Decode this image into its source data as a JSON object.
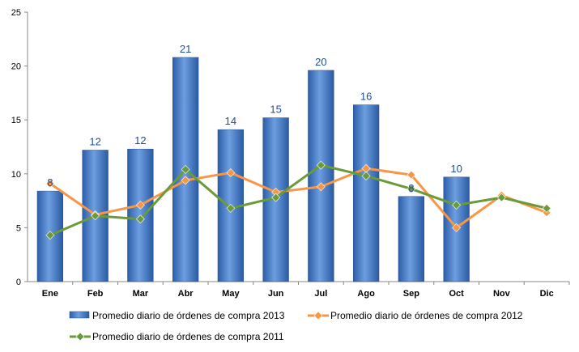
{
  "chart_data": {
    "type": "bar",
    "categories": [
      "Ene",
      "Feb",
      "Mar",
      "Abr",
      "May",
      "Jun",
      "Jul",
      "Ago",
      "Sep",
      "Oct",
      "Nov",
      "Dic"
    ],
    "ylim": [
      0,
      25
    ],
    "yticks": [
      0,
      5,
      10,
      15,
      20,
      25
    ],
    "grid": false,
    "legend_position": "bottom",
    "series": [
      {
        "name": "Promedio diario de órdenes de compra 2013",
        "kind": "bar",
        "color": "#4a7cc7",
        "values": [
          8.4,
          12.2,
          12.3,
          20.8,
          14.1,
          15.2,
          19.6,
          16.4,
          7.9,
          9.7,
          null,
          null
        ],
        "data_labels": [
          "8",
          "12",
          "12",
          "21",
          "14",
          "15",
          "20",
          "16",
          "8",
          "10",
          "",
          ""
        ]
      },
      {
        "name": "Promedio diario de órdenes de compra 2012",
        "kind": "line",
        "color": "#f79646",
        "values": [
          9.1,
          6.2,
          7.1,
          9.4,
          10.1,
          8.3,
          8.8,
          10.5,
          9.9,
          5.0,
          8.0,
          6.4
        ]
      },
      {
        "name": "Promedio diario de órdenes de compra 2011",
        "kind": "line",
        "color": "#6a9a3a",
        "values": [
          4.3,
          6.1,
          5.8,
          10.4,
          6.8,
          7.8,
          10.8,
          9.8,
          8.6,
          7.1,
          7.8,
          6.8
        ]
      }
    ]
  }
}
